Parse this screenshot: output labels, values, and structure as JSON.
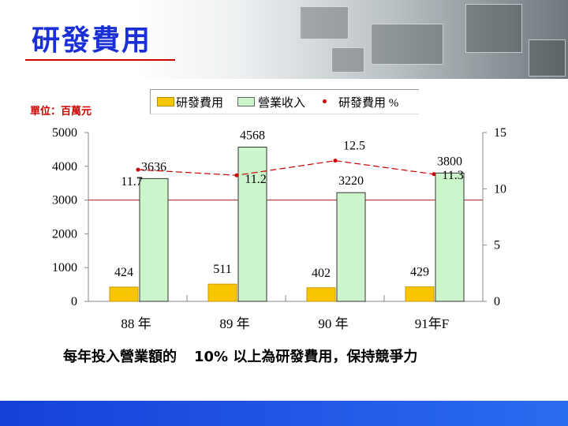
{
  "header": {
    "title": "研發費用"
  },
  "chart_data": {
    "type": "bar",
    "unit_label": "單位：百萬元",
    "categories": [
      "88 年",
      "89 年",
      "90 年",
      "91年F"
    ],
    "series": [
      {
        "name": "研發費用",
        "kind": "bar",
        "axis": "left",
        "values": [
          424,
          511,
          402,
          429
        ],
        "labels": [
          "424",
          "511",
          "402",
          "429"
        ]
      },
      {
        "name": "營業收入",
        "kind": "bar",
        "axis": "left",
        "values": [
          3636,
          4568,
          3220,
          3800
        ],
        "labels": [
          "3636",
          "4568",
          "3220",
          "3800"
        ]
      },
      {
        "name": "研發費用 %",
        "kind": "line",
        "axis": "right",
        "values": [
          11.7,
          11.2,
          12.5,
          11.3
        ],
        "labels": [
          "11.7",
          "11.2",
          "12.5",
          "11.3"
        ]
      }
    ],
    "y_left": {
      "ylim": [
        0,
        5000
      ],
      "ticks": [
        "0",
        "1000",
        "2000",
        "3000",
        "4000",
        "5000"
      ]
    },
    "y_right": {
      "ylim": [
        0,
        15
      ],
      "ticks": [
        "0",
        "5",
        "10",
        "15"
      ]
    },
    "reference_line": 3000,
    "colors": {
      "rd_bar": "#f7c600",
      "revenue_bar": "#ccf5cc",
      "pct_line": "#cc0000",
      "ref_line": "#aa2222"
    },
    "legend_position": "top"
  },
  "footer": {
    "caption_part1": "每年投入營業額的",
    "caption_part2": "10% 以上為研發費用，保持競爭力"
  }
}
